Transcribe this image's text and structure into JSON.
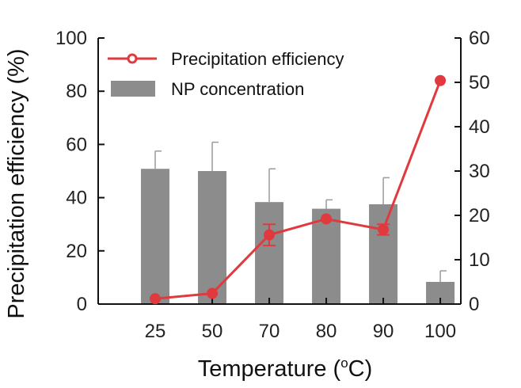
{
  "chart_data": {
    "type": "bar+line",
    "categories": [
      "25",
      "50",
      "70",
      "80",
      "90",
      "100"
    ],
    "xlabel": "Temperature",
    "xlabel_unit_prefix": "(",
    "xlabel_unit_sup": "o",
    "xlabel_unit_suffix": "C)",
    "ylabel_left": "Precipitation efficiency (%)",
    "ylim_left": [
      0,
      100
    ],
    "yticks_left": [
      "0",
      "20",
      "40",
      "60",
      "80",
      "100"
    ],
    "ylim_right": [
      0,
      60
    ],
    "yticks_right": [
      "0",
      "10",
      "20",
      "30",
      "40",
      "50",
      "60"
    ],
    "legend_position": "top-left",
    "series": [
      {
        "name": "Precipitation efficiency",
        "type": "line",
        "axis": "left",
        "color": "#e0393e",
        "values": [
          2,
          4,
          26,
          32,
          28,
          84
        ],
        "errors": [
          0,
          0,
          4,
          0,
          2,
          0
        ]
      },
      {
        "name": "NP concentration",
        "type": "bar",
        "axis": "right",
        "color": "#8c8c8c",
        "values": [
          30.5,
          30,
          23,
          21.5,
          22.5,
          5
        ],
        "errors": [
          4,
          6.5,
          7.5,
          2,
          6,
          2.5
        ]
      }
    ]
  }
}
